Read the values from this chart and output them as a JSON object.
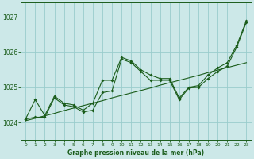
{
  "title": "Graphe pression niveau de la mer (hPa)",
  "background_color": "#cce8e8",
  "grid_color": "#99cccc",
  "line_color": "#1a5c1a",
  "xlim": [
    -0.5,
    23.5
  ],
  "ylim": [
    1023.5,
    1027.4
  ],
  "yticks": [
    1024,
    1025,
    1026,
    1027
  ],
  "xticks": [
    0,
    1,
    2,
    3,
    4,
    5,
    6,
    7,
    8,
    9,
    10,
    11,
    12,
    13,
    14,
    15,
    16,
    17,
    18,
    19,
    20,
    21,
    22,
    23
  ],
  "x": [
    0,
    1,
    2,
    3,
    4,
    5,
    6,
    7,
    8,
    9,
    10,
    11,
    12,
    13,
    14,
    15,
    16,
    17,
    18,
    19,
    20,
    21,
    22,
    23
  ],
  "y_trend": [
    1024.05,
    1024.12,
    1024.19,
    1024.26,
    1024.34,
    1024.41,
    1024.48,
    1024.55,
    1024.62,
    1024.7,
    1024.77,
    1024.84,
    1024.91,
    1024.98,
    1025.06,
    1025.13,
    1025.2,
    1025.27,
    1025.34,
    1025.42,
    1025.49,
    1025.56,
    1025.63,
    1025.7
  ],
  "y_jagged": [
    1024.1,
    1024.65,
    1024.2,
    1024.75,
    1024.55,
    1024.5,
    1024.35,
    1024.55,
    1025.2,
    1025.2,
    1025.85,
    1025.75,
    1025.5,
    1025.35,
    1025.25,
    1025.25,
    1024.7,
    1025.0,
    1025.05,
    1025.35,
    1025.55,
    1025.7,
    1026.2,
    1026.9
  ],
  "y_smooth": [
    1024.1,
    1024.15,
    1024.15,
    1024.7,
    1024.5,
    1024.45,
    1024.3,
    1024.35,
    1024.85,
    1024.9,
    1025.8,
    1025.7,
    1025.45,
    1025.2,
    1025.2,
    1025.2,
    1024.65,
    1024.98,
    1025.0,
    1025.25,
    1025.45,
    1025.6,
    1026.15,
    1026.85
  ]
}
